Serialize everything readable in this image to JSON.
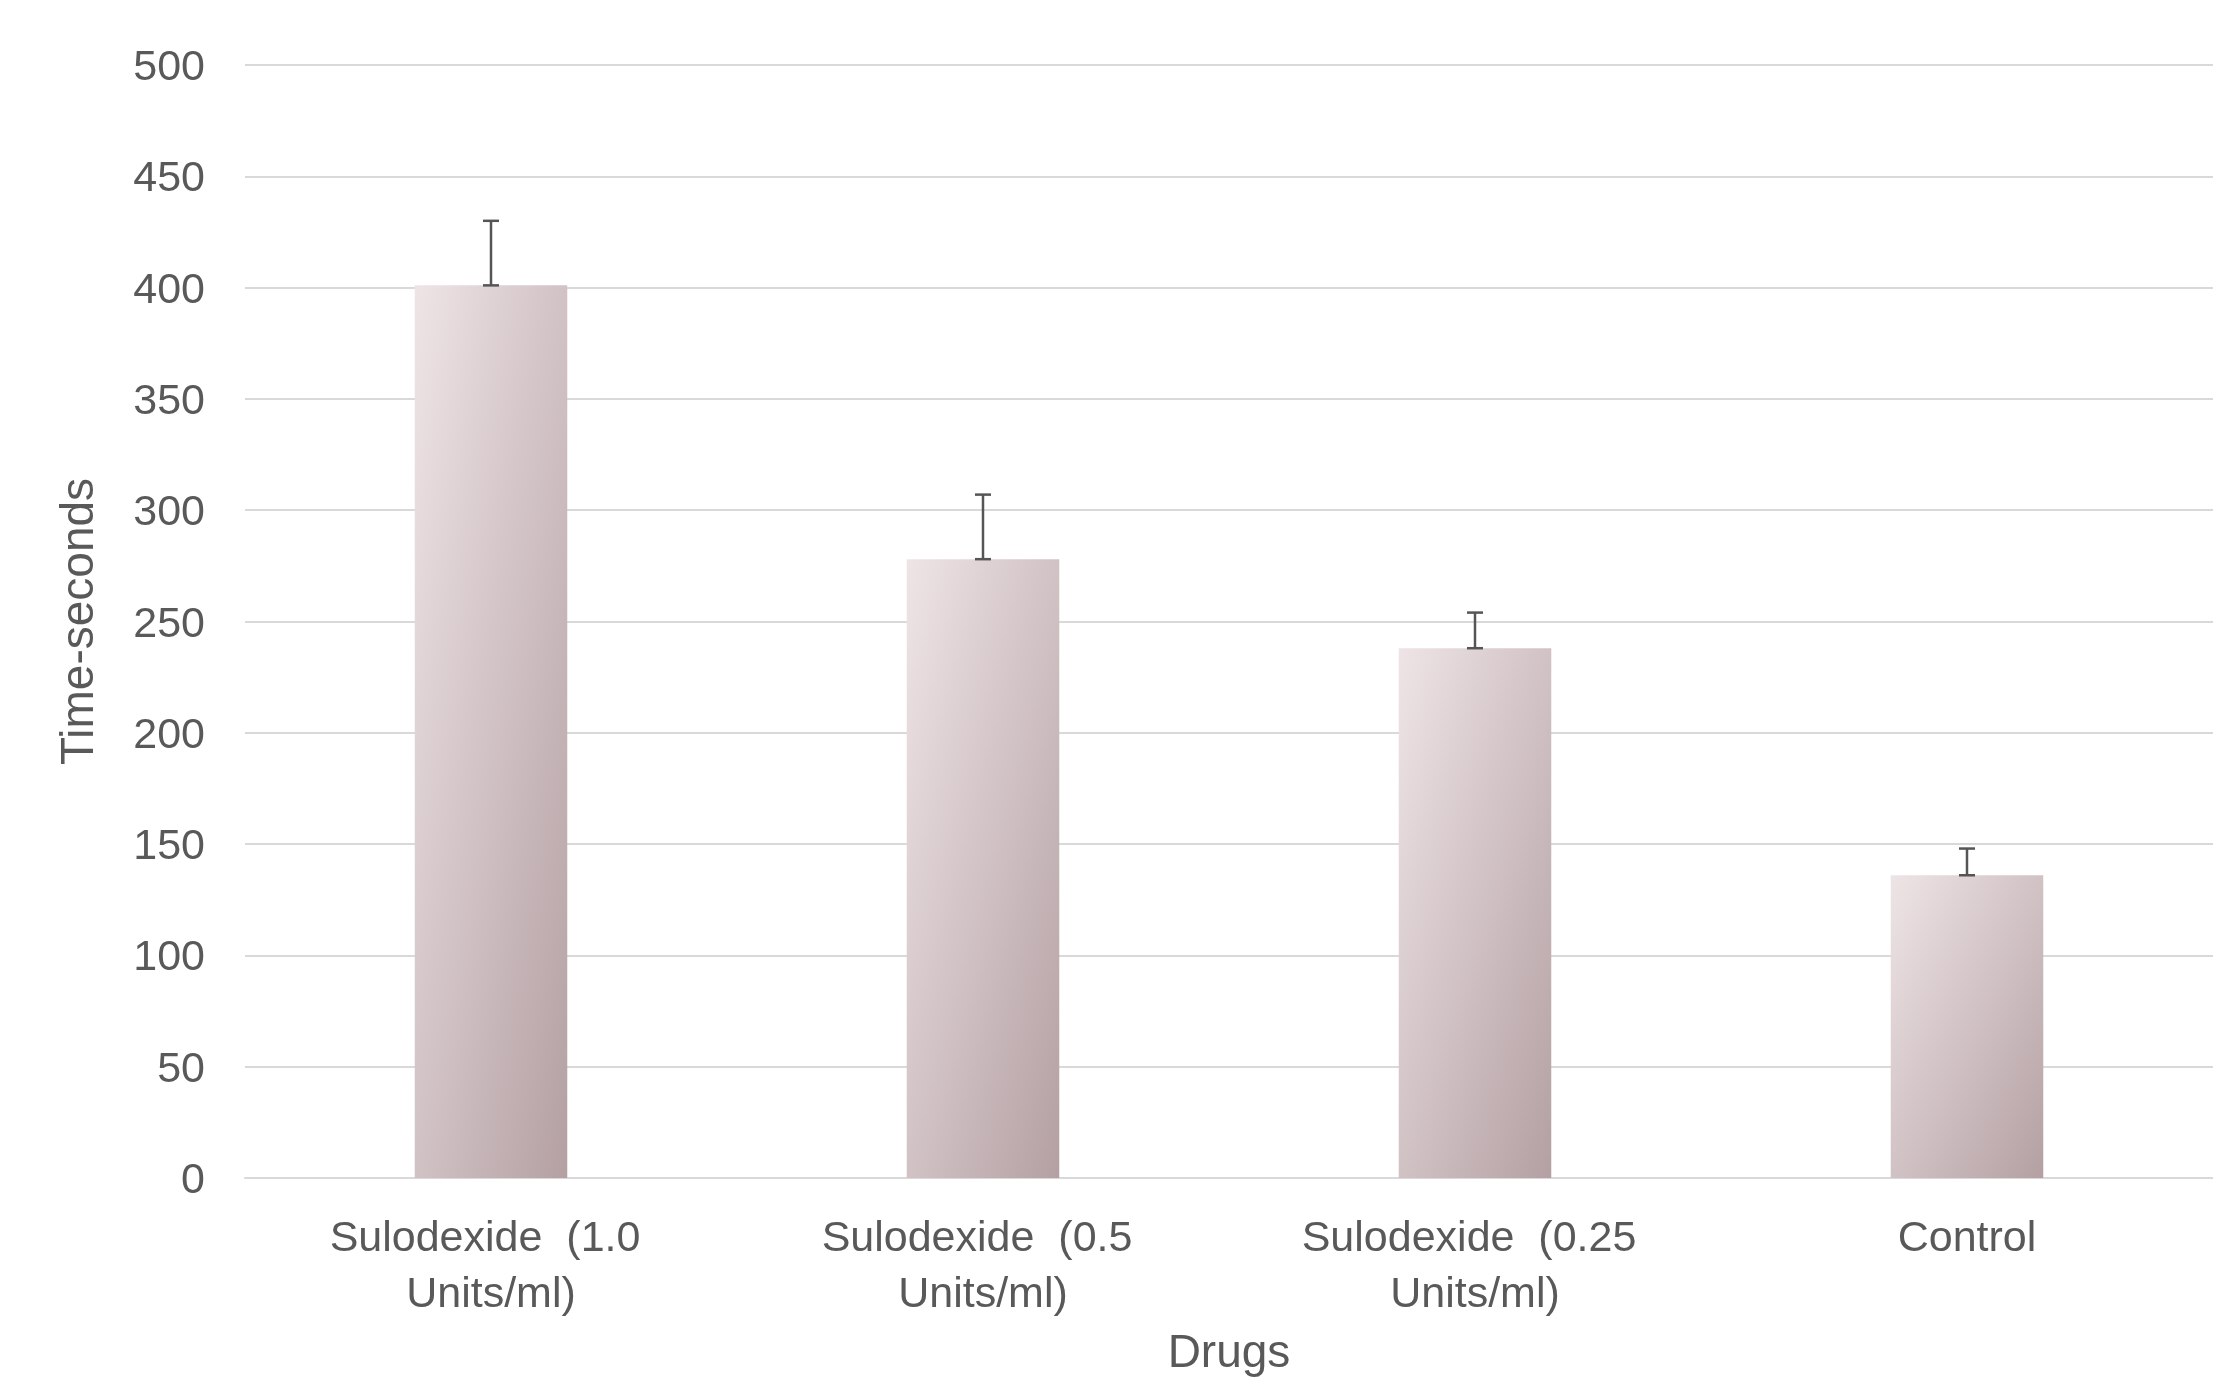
{
  "chart_data": {
    "type": "bar",
    "xlabel": "Drugs",
    "ylabel": "Time-seconds",
    "categories": [
      "Sulodexide  (1.0 Units/ml)",
      "Sulodexide  (0.5 Units/ml)",
      "Sulodexide  (0.25 Units/ml)",
      "Control"
    ],
    "values": [
      401,
      278,
      238,
      136
    ],
    "errors": [
      [
        401,
        430
      ],
      [
        278,
        307
      ],
      [
        238,
        254
      ],
      [
        136,
        148
      ]
    ],
    "color": "#d4bcc0",
    "ylim": [
      0,
      500
    ],
    "yticks": [
      0,
      50,
      100,
      150,
      200,
      250,
      300,
      350,
      400,
      450,
      500
    ],
    "grid": "y"
  }
}
